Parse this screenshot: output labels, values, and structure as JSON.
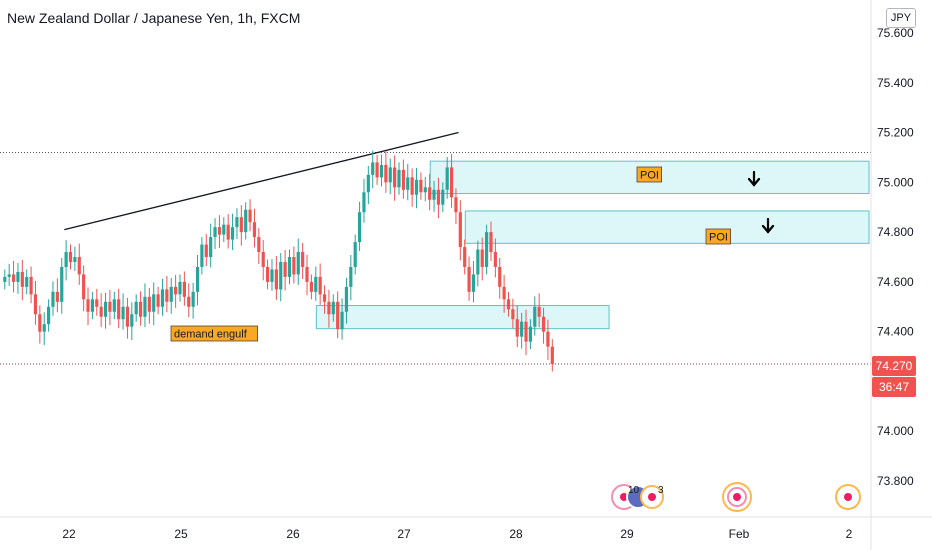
{
  "header": {
    "title": "New Zealand Dollar / Japanese Yen, 1h, FXCM",
    "currency": "JPY"
  },
  "price_label": {
    "value": "74.270",
    "countdown": "36:47",
    "color": "#ef5350"
  },
  "colors": {
    "up": "#26a69a",
    "down": "#ef5350",
    "zone_fill": "#d2f3f5",
    "zone_stroke": "#5ec3c7",
    "label_fill": "#f9a825"
  },
  "annotations": {
    "poi_1": "POI",
    "poi_2": "POI",
    "demand": "demand engulf"
  },
  "events": {
    "count_a": "10",
    "count_b": "3"
  },
  "chart_data": {
    "type": "candlestick",
    "y_ticks": [
      "75.600",
      "75.400",
      "75.200",
      "75.000",
      "74.800",
      "74.600",
      "74.400",
      "74.000",
      "73.800"
    ],
    "x_ticks": [
      "22",
      "25",
      "26",
      "27",
      "28",
      "29",
      "Feb",
      "2"
    ],
    "ylim": [
      73.7,
      75.65
    ],
    "closes": [
      74.62,
      74.63,
      74.6,
      74.64,
      74.58,
      74.62,
      74.55,
      74.47,
      74.4,
      74.43,
      74.5,
      74.56,
      74.52,
      74.66,
      74.72,
      74.68,
      74.7,
      74.63,
      74.53,
      74.48,
      74.53,
      74.5,
      74.46,
      74.52,
      74.48,
      74.53,
      74.45,
      74.5,
      74.42,
      74.47,
      74.52,
      74.46,
      74.54,
      74.48,
      74.55,
      74.5,
      74.57,
      74.52,
      74.58,
      74.55,
      74.6,
      74.54,
      74.5,
      74.56,
      74.66,
      74.75,
      74.7,
      74.78,
      74.82,
      74.79,
      74.83,
      74.77,
      74.82,
      74.86,
      74.8,
      74.89,
      74.84,
      74.78,
      74.72,
      74.66,
      74.6,
      74.65,
      74.57,
      74.68,
      74.62,
      74.7,
      74.63,
      74.72,
      74.66,
      74.6,
      74.56,
      74.62,
      74.55,
      74.52,
      74.47,
      74.52,
      74.41,
      74.48,
      74.58,
      74.66,
      74.76,
      74.88,
      74.96,
      75.03,
      75.08,
      75.02,
      75.07,
      75.0,
      75.06,
      74.98,
      75.05,
      74.97,
      75.02,
      74.95,
      75.01,
      74.96,
      74.98,
      74.93,
      74.97,
      74.91,
      74.97,
      75.06,
      74.94,
      74.88,
      74.74,
      74.66,
      74.56,
      74.63,
      74.73,
      74.66,
      74.8,
      74.72,
      74.66,
      74.58,
      74.53,
      74.49,
      74.45,
      74.38,
      74.44,
      74.36,
      74.42,
      74.5,
      74.46,
      74.4,
      74.34,
      74.27
    ],
    "zones": [
      {
        "name": "POI upper",
        "from_index": 98,
        "y_low": 74.955,
        "y_high": 75.085
      },
      {
        "name": "POI lower",
        "from_index": 106,
        "y_low": 74.755,
        "y_high": 74.885
      },
      {
        "name": "demand engulf",
        "from_index": 72,
        "to_index": 137,
        "y_low": 74.412,
        "y_high": 74.505
      }
    ],
    "trendline": {
      "x_from_index": 14,
      "y_from": 74.81,
      "x_to_index": 104,
      "y_to": 75.2
    },
    "horizontal_lines": [
      75.12,
      74.27
    ]
  }
}
